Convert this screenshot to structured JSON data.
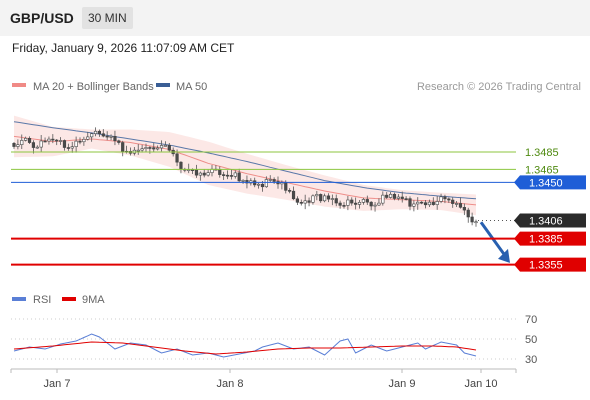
{
  "header": {
    "pair": "GBP/USD",
    "timeframe": "30 MIN"
  },
  "timestamp": "Friday, January 9, 2026 11:07:09 AM CET",
  "legend": {
    "items": [
      {
        "label": "MA 20 + Bollinger Bands",
        "color": "#f08a86"
      },
      {
        "label": "MA 50",
        "color": "#3a5e95"
      }
    ],
    "credit": "Research © 2026 Trading Central"
  },
  "rsi_legend": {
    "items": [
      {
        "label": "RSI",
        "color": "#5a7fd6"
      },
      {
        "label": "9MA",
        "color": "#e00000"
      }
    ]
  },
  "colors": {
    "resistance": "#8cc63f",
    "resistance_text": "#4f8a10",
    "pivot": "#1f5ed7",
    "support": "#e00000",
    "current": "#2b2b2b",
    "bb_fill": "#fbe0dd",
    "candle_body": "#4a4a4a",
    "arrow": "#2860b0"
  },
  "chart_data": [
    {
      "type": "candlestick",
      "title": "",
      "x": {
        "labels": [
          "Jan 7",
          "Jan 8",
          "Jan 9",
          "Jan 10"
        ],
        "candle_count": 120
      },
      "ylim": [
        1.3335,
        1.3545
      ],
      "levels": [
        {
          "value": 1.3485,
          "label": "1.3485",
          "kind": "resistance"
        },
        {
          "value": 1.3465,
          "label": "1.3465",
          "kind": "resistance"
        },
        {
          "value": 1.345,
          "label": "1.3450",
          "kind": "pivot"
        },
        {
          "value": 1.3406,
          "label": "1.3406",
          "kind": "current"
        },
        {
          "value": 1.3385,
          "label": "1.3385",
          "kind": "support"
        },
        {
          "value": 1.3355,
          "label": "1.3355",
          "kind": "support"
        }
      ],
      "close_path": [
        [
          0,
          1.3495
        ],
        [
          3,
          1.3502
        ],
        [
          6,
          1.349
        ],
        [
          10,
          1.3497
        ],
        [
          14,
          1.3493
        ],
        [
          18,
          1.3504
        ],
        [
          21,
          1.3507
        ],
        [
          24,
          1.35
        ],
        [
          27,
          1.3492
        ],
        [
          30,
          1.3487
        ],
        [
          33,
          1.3494
        ],
        [
          36,
          1.3486
        ],
        [
          39,
          1.3488
        ],
        [
          42,
          1.3472
        ],
        [
          45,
          1.3466
        ],
        [
          48,
          1.3462
        ],
        [
          51,
          1.346
        ],
        [
          54,
          1.3457
        ],
        [
          57,
          1.3455
        ],
        [
          60,
          1.3454
        ],
        [
          63,
          1.3448
        ],
        [
          66,
          1.3449
        ],
        [
          69,
          1.3445
        ],
        [
          72,
          1.3432
        ],
        [
          75,
          1.343
        ],
        [
          78,
          1.3437
        ],
        [
          81,
          1.3428
        ],
        [
          84,
          1.342
        ],
        [
          87,
          1.3428
        ],
        [
          90,
          1.3432
        ],
        [
          93,
          1.3424
        ],
        [
          96,
          1.3432
        ],
        [
          99,
          1.343
        ],
        [
          102,
          1.3426
        ],
        [
          105,
          1.3431
        ],
        [
          108,
          1.3428
        ],
        [
          111,
          1.3429
        ],
        [
          114,
          1.3423
        ],
        [
          116,
          1.3414
        ],
        [
          118,
          1.3409
        ],
        [
          119,
          1.3406
        ]
      ],
      "ma20_path": [
        [
          0,
          1.3503
        ],
        [
          10,
          1.3497
        ],
        [
          20,
          1.35
        ],
        [
          30,
          1.3496
        ],
        [
          40,
          1.3488
        ],
        [
          50,
          1.3472
        ],
        [
          60,
          1.346
        ],
        [
          70,
          1.345
        ],
        [
          80,
          1.344
        ],
        [
          90,
          1.3432
        ],
        [
          100,
          1.343
        ],
        [
          110,
          1.3428
        ],
        [
          119,
          1.3424
        ]
      ],
      "bb_upper_path": [
        [
          0,
          1.3527
        ],
        [
          10,
          1.3514
        ],
        [
          20,
          1.3511
        ],
        [
          30,
          1.3511
        ],
        [
          40,
          1.3508
        ],
        [
          50,
          1.3497
        ],
        [
          60,
          1.3483
        ],
        [
          70,
          1.347
        ],
        [
          80,
          1.3458
        ],
        [
          90,
          1.3447
        ],
        [
          100,
          1.3441
        ],
        [
          110,
          1.3438
        ],
        [
          119,
          1.3436
        ]
      ],
      "bb_lower_path": [
        [
          0,
          1.3479
        ],
        [
          10,
          1.348
        ],
        [
          20,
          1.3489
        ],
        [
          30,
          1.3481
        ],
        [
          40,
          1.3468
        ],
        [
          50,
          1.3447
        ],
        [
          60,
          1.3437
        ],
        [
          70,
          1.343
        ],
        [
          80,
          1.3422
        ],
        [
          90,
          1.3417
        ],
        [
          100,
          1.3419
        ],
        [
          110,
          1.3418
        ],
        [
          119,
          1.3412
        ]
      ],
      "ma50_path": [
        [
          0,
          1.352
        ],
        [
          10,
          1.3513
        ],
        [
          20,
          1.3507
        ],
        [
          30,
          1.35
        ],
        [
          40,
          1.3493
        ],
        [
          50,
          1.3484
        ],
        [
          60,
          1.3474
        ],
        [
          70,
          1.3463
        ],
        [
          80,
          1.3452
        ],
        [
          90,
          1.3444
        ],
        [
          100,
          1.3438
        ],
        [
          110,
          1.3434
        ],
        [
          119,
          1.3431
        ]
      ],
      "projection": {
        "from": [
          119,
          1.3404
        ],
        "to": [
          128,
          1.3357
        ]
      }
    },
    {
      "type": "line",
      "title": "",
      "ylim": [
        25,
        75
      ],
      "y_ticks": [
        70,
        50,
        30
      ],
      "series": [
        {
          "name": "RSI",
          "color": "#5a7fd6",
          "points": [
            [
              0,
              38
            ],
            [
              4,
              42
            ],
            [
              8,
              40
            ],
            [
              12,
              45
            ],
            [
              16,
              48
            ],
            [
              20,
              55
            ],
            [
              22,
              52
            ],
            [
              26,
              40
            ],
            [
              30,
              46
            ],
            [
              34,
              44
            ],
            [
              38,
              36
            ],
            [
              42,
              40
            ],
            [
              46,
              34
            ],
            [
              50,
              36
            ],
            [
              54,
              32
            ],
            [
              58,
              35
            ],
            [
              62,
              38
            ],
            [
              64,
              42
            ],
            [
              68,
              46
            ],
            [
              72,
              40
            ],
            [
              76,
              42
            ],
            [
              80,
              34
            ],
            [
              84,
              48
            ],
            [
              86,
              50
            ],
            [
              88,
              36
            ],
            [
              92,
              44
            ],
            [
              96,
              38
            ],
            [
              100,
              42
            ],
            [
              104,
              46
            ],
            [
              106,
              40
            ],
            [
              110,
              47
            ],
            [
              114,
              44
            ],
            [
              116,
              36
            ],
            [
              118,
              34
            ],
            [
              119,
              33
            ]
          ]
        },
        {
          "name": "9MA",
          "color": "#e00000",
          "points": [
            [
              0,
              40
            ],
            [
              10,
              43
            ],
            [
              20,
              47
            ],
            [
              28,
              46
            ],
            [
              36,
              42
            ],
            [
              44,
              38
            ],
            [
              52,
              35
            ],
            [
              60,
              37
            ],
            [
              68,
              40
            ],
            [
              76,
              41
            ],
            [
              84,
              41
            ],
            [
              92,
              42
            ],
            [
              100,
              43
            ],
            [
              108,
              43
            ],
            [
              114,
              42
            ],
            [
              119,
              39
            ]
          ]
        }
      ]
    }
  ]
}
